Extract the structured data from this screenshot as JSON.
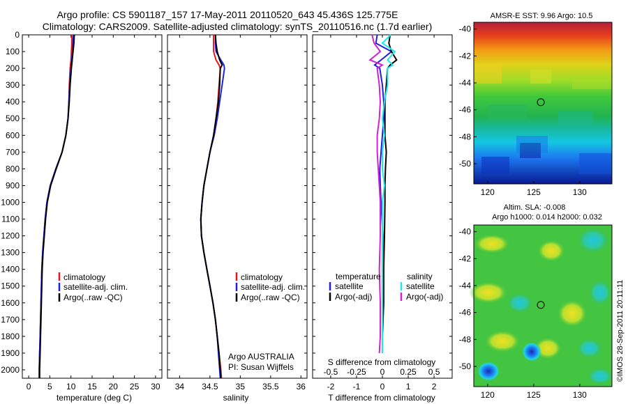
{
  "title": {
    "line1": "Argo profile: CS 5901187_157 17-May-2011 20110520_643 45.436S 125.775E",
    "line2": "Climatology: CARS2009. Satellite-adjusted climatology: synTS_20110516.nc (1.7d earlier)"
  },
  "colors": {
    "climatology": "#e8141e",
    "satellite": "#1f1fe0",
    "argo": "#000000",
    "sal_satellite": "#20e8e8",
    "sal_argo": "#d020d0"
  },
  "chart_data": [
    {
      "type": "line",
      "name": "temperature-profile",
      "xlabel": "temperature (deg C)",
      "ylabel": "",
      "xlim": [
        -1.5,
        31.5
      ],
      "ylim": [
        2050,
        0
      ],
      "xticks": [
        "0",
        "5",
        "10",
        "15",
        "20",
        "25",
        "30"
      ],
      "yticks": [
        "0",
        "100",
        "200",
        "300",
        "400",
        "500",
        "600",
        "700",
        "800",
        "900",
        "1000",
        "1100",
        "1200",
        "1300",
        "1400",
        "1500",
        "1600",
        "1700",
        "1800",
        "1900",
        "2000"
      ],
      "depth": [
        0,
        50,
        100,
        150,
        200,
        300,
        400,
        500,
        600,
        700,
        800,
        900,
        1000,
        1100,
        1200,
        1300,
        1400,
        1500,
        1600,
        1700,
        1800,
        1900,
        2000,
        2050
      ],
      "series": [
        {
          "name": "climatology",
          "values": [
            10.2,
            10.2,
            10.1,
            10.0,
            9.8,
            9.6,
            9.5,
            9.3,
            8.8,
            7.9,
            6.5,
            5.1,
            4.3,
            3.9,
            3.6,
            3.3,
            3.1,
            3.0,
            2.9,
            2.8,
            2.7,
            2.6,
            2.5,
            2.5
          ]
        },
        {
          "name": "satellite-adj. clim.",
          "values": [
            10.6,
            10.5,
            10.4,
            10.2,
            10.0,
            9.7,
            9.5,
            9.3,
            8.8,
            7.9,
            6.4,
            5.1,
            4.3,
            3.9,
            3.6,
            3.3,
            3.1,
            3.0,
            2.9,
            2.8,
            2.7,
            2.6,
            2.5,
            2.5
          ]
        },
        {
          "name": "Argo(..raw -QC)",
          "values": [
            10.8,
            10.7,
            10.5,
            10.3,
            10.1,
            9.8,
            9.6,
            9.3,
            8.8,
            7.9,
            6.5,
            5.2,
            4.4,
            4.0,
            3.7,
            3.4,
            3.2,
            3.1,
            3.0,
            2.9,
            2.8,
            2.7,
            2.6,
            2.6
          ]
        }
      ],
      "legend": [
        "climatology",
        "satellite-adj. clim.",
        "Argo(..raw -QC)"
      ]
    },
    {
      "type": "line",
      "name": "salinity-profile",
      "xlabel": "salinity",
      "ylabel": "",
      "xlim": [
        33.8,
        36.1
      ],
      "ylim": [
        2050,
        0
      ],
      "xticks": [
        "34",
        "34.5",
        "35",
        "35.5",
        "36"
      ],
      "depth": [
        0,
        50,
        100,
        150,
        180,
        200,
        300,
        400,
        500,
        600,
        700,
        800,
        900,
        1000,
        1100,
        1200,
        1300,
        1400,
        1500,
        1600,
        1700,
        1800,
        1900,
        2000,
        2050
      ],
      "series": [
        {
          "name": "climatology",
          "values": [
            34.56,
            34.56,
            34.56,
            34.6,
            34.65,
            34.67,
            34.65,
            34.63,
            34.6,
            34.56,
            34.5,
            34.45,
            34.4,
            34.37,
            34.35,
            34.36,
            34.4,
            34.45,
            34.5,
            34.55,
            34.59,
            34.62,
            34.65,
            34.68,
            34.69
          ]
        },
        {
          "name": "satellite-adj. clim.",
          "values": [
            34.59,
            34.59,
            34.6,
            34.68,
            34.73,
            34.74,
            34.7,
            34.66,
            34.62,
            34.57,
            34.5,
            34.45,
            34.4,
            34.37,
            34.35,
            34.36,
            34.4,
            34.45,
            34.5,
            34.55,
            34.59,
            34.62,
            34.64,
            34.66,
            34.67
          ]
        },
        {
          "name": "Argo(..raw -QC)",
          "values": [
            34.59,
            34.6,
            34.62,
            34.66,
            34.7,
            34.67,
            34.66,
            34.64,
            34.6,
            34.56,
            34.5,
            34.45,
            34.4,
            34.37,
            34.35,
            34.36,
            34.4,
            34.45,
            34.5,
            34.55,
            34.59,
            34.62,
            34.65,
            34.67,
            34.68
          ]
        }
      ],
      "legend": [
        "climatology",
        "satellite-adj. clim.",
        "Argo(..raw -QC)"
      ],
      "annotation": [
        "Argo AUSTRALIA",
        "PI: Susan Wijffels"
      ]
    },
    {
      "type": "line",
      "name": "difference-profile",
      "xlabel": "T difference from climatology",
      "xlabel_top": "S difference from climatology",
      "xlim": [
        -2.7,
        2.7
      ],
      "ylim": [
        2050,
        0
      ],
      "xticks": [
        "-2",
        "-1",
        "0",
        "1",
        "2"
      ],
      "xticks_top": [
        "-0.5",
        "-0.25",
        "0",
        "0.25",
        "0.5"
      ],
      "depth": [
        0,
        50,
        100,
        150,
        180,
        200,
        300,
        400,
        500,
        600,
        700,
        800,
        900,
        1000,
        1200,
        1400,
        1600,
        1800,
        1900
      ],
      "series": [
        {
          "name": "temperature satellite",
          "values": [
            -0.2,
            -0.25,
            0.35,
            -0.05,
            -0.3,
            -0.1,
            0.0,
            0.05,
            0.05,
            0.0,
            -0.05,
            -0.1,
            -0.08,
            -0.05,
            0.02,
            0.0,
            0.0,
            0.0,
            0.0
          ]
        },
        {
          "name": "temperature Argo(-adj)",
          "values": [
            0.3,
            0.25,
            0.35,
            0.55,
            0.3,
            0.2,
            0.15,
            0.1,
            0.1,
            0.1,
            0.15,
            0.12,
            0.1,
            0.1,
            0.08,
            0.05,
            0.05,
            0.0,
            0.0
          ]
        },
        {
          "name": "salinity satellite",
          "values": [
            0.08,
            0.0,
            0.12,
            0.05,
            0.1,
            0.05,
            0.05,
            0.02,
            0.0,
            0.02,
            0.0,
            0.0,
            0.02,
            0.0,
            0.0,
            0.0,
            0.0,
            0.0,
            0.0
          ]
        },
        {
          "name": "salinity Argo(-adj)",
          "values": [
            -0.1,
            -0.08,
            -0.02,
            -0.12,
            0.0,
            -0.05,
            -0.03,
            -0.02,
            -0.03,
            -0.05,
            -0.05,
            -0.04,
            -0.03,
            -0.02,
            -0.02,
            -0.03,
            -0.02,
            -0.02,
            -0.03
          ]
        }
      ],
      "legend_titles": [
        "temperature",
        "salinity"
      ],
      "legend": [
        "satellite",
        "Argo(-adj)",
        "satellite",
        "Argo(-adj)"
      ]
    },
    {
      "type": "heatmap",
      "name": "sst-map",
      "title": "AMSR-E SST: 9.96 Argo: 10.5",
      "xlim": [
        118.5,
        133.5
      ],
      "ylim": [
        -51.5,
        -39.5
      ],
      "xticks": [
        "120",
        "125",
        "130"
      ],
      "yticks": [
        "-40",
        "-42",
        "-44",
        "-46",
        "-48",
        "-50"
      ],
      "marker": {
        "lon": 125.775,
        "lat": -45.436
      }
    },
    {
      "type": "heatmap",
      "name": "sla-map",
      "title_line1": "Altim. SLA: -0.008",
      "title_line2": "Argo h1000: 0.014 h2000: 0.032",
      "xlim": [
        118.5,
        133.5
      ],
      "ylim": [
        -51.5,
        -39.5
      ],
      "xticks": [
        "120",
        "125",
        "130"
      ],
      "yticks": [
        "-40",
        "-42",
        "-44",
        "-46",
        "-48",
        "-50"
      ],
      "marker": {
        "lon": 125.775,
        "lat": -45.436
      }
    }
  ],
  "credit": "©IMOS 28-Sep-2011 20:11:11"
}
